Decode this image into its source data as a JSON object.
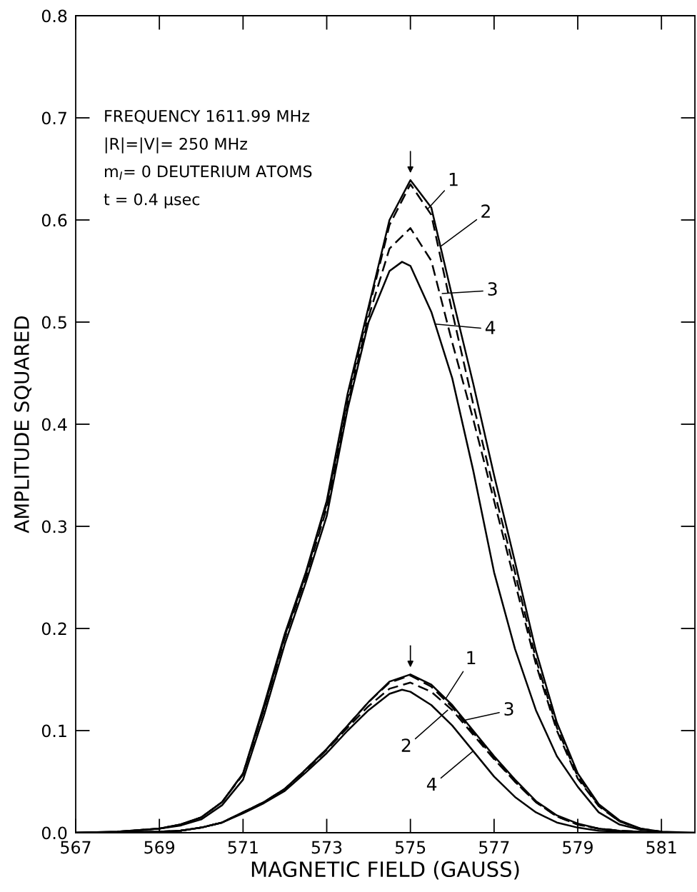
{
  "chart_data": {
    "type": "line",
    "xlabel": "MAGNETIC FIELD (GAUSS)",
    "ylabel": "AMPLITUDE SQUARED",
    "xlim": [
      567,
      581.8
    ],
    "ylim": [
      0,
      0.8
    ],
    "xticks": [
      567,
      569,
      571,
      573,
      575,
      577,
      579,
      581
    ],
    "yticks": [
      {
        "value": 0,
        "label": "0.0"
      },
      0.1,
      0.2,
      0.3,
      0.4,
      0.5,
      0.6,
      0.7,
      0.8
    ],
    "grid": false,
    "legend": false,
    "marker": "none",
    "series": [
      {
        "color": "#000000",
        "line_style": "solid",
        "x": [
          567,
          568,
          569,
          569.5,
          570,
          570.5,
          571,
          571.5,
          572,
          572.5,
          573,
          573.5,
          574,
          574.5,
          575,
          575.5,
          576,
          576.5,
          577,
          577.5,
          578,
          578.5,
          579,
          579.5,
          580,
          580.5,
          581,
          581.8
        ],
        "values": [
          0,
          0.001,
          0.004,
          0.008,
          0.015,
          0.03,
          0.058,
          0.125,
          0.195,
          0.255,
          0.325,
          0.43,
          0.515,
          0.6,
          0.639,
          0.612,
          0.525,
          0.44,
          0.35,
          0.265,
          0.178,
          0.108,
          0.058,
          0.028,
          0.012,
          0.004,
          0.001,
          0
        ]
      },
      {
        "color": "#000000",
        "line_style": "dashed",
        "x": [
          568,
          569,
          569.5,
          570,
          570.5,
          571,
          571.5,
          572,
          572.5,
          573,
          573.5,
          574,
          574.5,
          575,
          575.5,
          576,
          576.5,
          577,
          577.5,
          578,
          578.5,
          579,
          579.5,
          580,
          580.5,
          581
        ],
        "values": [
          0.001,
          0.004,
          0.008,
          0.015,
          0.03,
          0.058,
          0.122,
          0.193,
          0.253,
          0.322,
          0.425,
          0.512,
          0.595,
          0.635,
          0.605,
          0.51,
          0.42,
          0.335,
          0.255,
          0.17,
          0.103,
          0.055,
          0.027,
          0.011,
          0.004,
          0.001
        ]
      },
      {
        "color": "#000000",
        "line_style": "dashed",
        "x": [
          569,
          569.5,
          570,
          570.5,
          571,
          571.5,
          572,
          572.5,
          573,
          573.5,
          574,
          574.5,
          575,
          575.5,
          576,
          576.5,
          577,
          577.5,
          578,
          578.5,
          579,
          579.5,
          580,
          580.5
        ],
        "values": [
          0.004,
          0.008,
          0.015,
          0.03,
          0.057,
          0.121,
          0.191,
          0.25,
          0.318,
          0.42,
          0.505,
          0.572,
          0.592,
          0.56,
          0.48,
          0.405,
          0.325,
          0.245,
          0.165,
          0.1,
          0.053,
          0.026,
          0.011,
          0.004
        ]
      },
      {
        "color": "#000000",
        "line_style": "solid",
        "x": [
          567,
          568,
          569,
          569.5,
          570,
          570.5,
          571,
          571.5,
          572,
          572.5,
          573,
          573.5,
          574,
          574.5,
          574.8,
          575,
          575.5,
          576,
          576.5,
          577,
          577.5,
          578,
          578.5,
          579,
          579.5,
          580,
          580.5,
          581
        ],
        "values": [
          0,
          0.001,
          0.004,
          0.007,
          0.013,
          0.027,
          0.052,
          0.115,
          0.185,
          0.245,
          0.31,
          0.415,
          0.5,
          0.55,
          0.559,
          0.555,
          0.51,
          0.445,
          0.355,
          0.255,
          0.18,
          0.12,
          0.075,
          0.045,
          0.02,
          0.008,
          0.003,
          0.001
        ]
      },
      {
        "color": "#000000",
        "line_style": "solid",
        "x": [
          567,
          569,
          569.5,
          570,
          570.5,
          571,
          571.5,
          572,
          572.5,
          573,
          573.5,
          574,
          574.5,
          575,
          575.5,
          576,
          576.5,
          577,
          577.5,
          578,
          578.5,
          579,
          579.5,
          580,
          581,
          581.8
        ],
        "values": [
          0,
          0.001,
          0.002,
          0.005,
          0.01,
          0.02,
          0.03,
          0.043,
          0.062,
          0.082,
          0.105,
          0.128,
          0.148,
          0.155,
          0.145,
          0.125,
          0.1,
          0.075,
          0.052,
          0.031,
          0.017,
          0.009,
          0.004,
          0.002,
          0,
          0
        ]
      },
      {
        "color": "#000000",
        "line_style": "dashed",
        "x": [
          569,
          569.5,
          570,
          570.5,
          571,
          571.5,
          572,
          572.5,
          573,
          573.5,
          574,
          574.5,
          575,
          575.5,
          576,
          576.5,
          577,
          577.5,
          578,
          578.5,
          579,
          579.5,
          580,
          581
        ],
        "values": [
          0.001,
          0.002,
          0.005,
          0.01,
          0.02,
          0.03,
          0.043,
          0.062,
          0.082,
          0.105,
          0.128,
          0.147,
          0.154,
          0.143,
          0.123,
          0.098,
          0.073,
          0.05,
          0.03,
          0.016,
          0.008,
          0.004,
          0.002,
          0
        ]
      },
      {
        "color": "#000000",
        "line_style": "dashed",
        "x": [
          569.5,
          570,
          570.5,
          571,
          571.5,
          572,
          572.5,
          573,
          573.5,
          574,
          574.5,
          575,
          575.5,
          576,
          576.5,
          577,
          577.5,
          578,
          578.5,
          579,
          579.5,
          580
        ],
        "values": [
          0.002,
          0.005,
          0.01,
          0.02,
          0.03,
          0.043,
          0.061,
          0.081,
          0.103,
          0.124,
          0.141,
          0.147,
          0.138,
          0.12,
          0.096,
          0.072,
          0.05,
          0.03,
          0.016,
          0.008,
          0.004,
          0.002
        ]
      },
      {
        "color": "#000000",
        "line_style": "solid",
        "x": [
          567,
          569,
          569.5,
          570,
          570.5,
          571,
          571.5,
          572,
          572.5,
          573,
          573.5,
          574,
          574.5,
          574.8,
          575,
          575.5,
          576,
          576.5,
          577,
          577.5,
          578,
          578.5,
          579,
          579.5,
          580,
          581
        ],
        "values": [
          0,
          0.001,
          0.002,
          0.005,
          0.01,
          0.019,
          0.029,
          0.041,
          0.059,
          0.078,
          0.1,
          0.12,
          0.136,
          0.14,
          0.138,
          0.125,
          0.105,
          0.08,
          0.055,
          0.035,
          0.02,
          0.01,
          0.005,
          0.002,
          0.001,
          0
        ]
      }
    ],
    "annotations": [
      "FREQUENCY 1611.99 MHz",
      "|R|=|V|= 250 MHz",
      "m$_{I}$= 0 DEUTERIUM ATOMS",
      "t = 0.4 μsec",
      {
        "text": "1",
        "x": 575.42,
        "y": 0.611
      },
      {
        "text": "2",
        "x": 575.72,
        "y": 0.574
      },
      {
        "text": "3",
        "x": 575.76,
        "y": 0.528
      },
      {
        "text": "4",
        "x": 575.59,
        "y": 0.498
      },
      {
        "text": "1",
        "x": 575.84,
        "y": 0.131
      },
      {
        "text": "2",
        "x": 575.89,
        "y": 0.12
      },
      {
        "text": "3",
        "x": 576.27,
        "y": 0.11
      },
      {
        "text": "4",
        "x": 576.5,
        "y": 0.08
      }
    ]
  }
}
